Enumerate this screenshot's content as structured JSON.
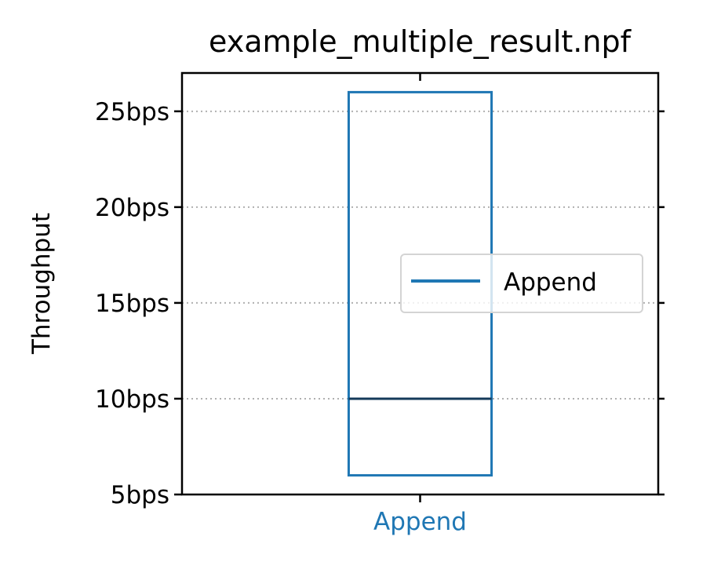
{
  "chart_data": {
    "type": "box",
    "title": "example_multiple_result.npf",
    "xlabel": "",
    "ylabel": "Throughput",
    "ylim": [
      5,
      27
    ],
    "y_ticks": [
      5,
      10,
      15,
      20,
      25
    ],
    "y_tick_labels": [
      "5bps",
      "10bps",
      "15bps",
      "20bps",
      "25bps"
    ],
    "categories": [
      "Append"
    ],
    "boxes": [
      {
        "name": "Append",
        "q1": 6,
        "median": 10,
        "q3": 26
      }
    ],
    "grid": "y-dotted",
    "legend": {
      "placement": "center-right",
      "entries": [
        "Append"
      ]
    },
    "colors": {
      "series": "#1f77b4",
      "median": "#143a5a",
      "grid": "#b0b0b0"
    }
  }
}
